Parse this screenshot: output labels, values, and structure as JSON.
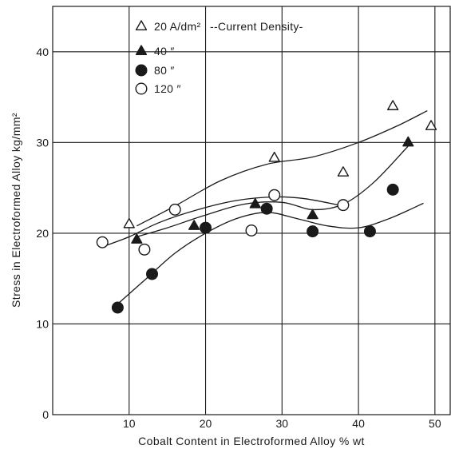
{
  "chart_data": {
    "type": "scatter",
    "xlabel": "Cobalt Content in Electroformed Alloy % wt",
    "ylabel": "Stress in Electroformed Alloy kg/mm²",
    "xlim": [
      0,
      52
    ],
    "ylim": [
      0,
      45
    ],
    "x_ticks": [
      "10",
      "20",
      "30",
      "40",
      "50"
    ],
    "y_ticks": [
      "0",
      "10",
      "20",
      "30",
      "40"
    ],
    "grid": true,
    "legend_position": "top-left",
    "legend_title": "--Current Density-",
    "series": [
      {
        "name": "20 A/dm²",
        "marker": "triangle-open",
        "points": [
          [
            10,
            21
          ],
          [
            29,
            28.3
          ],
          [
            38,
            26.7
          ],
          [
            44.5,
            34
          ],
          [
            49.5,
            31.8
          ]
        ],
        "curve": [
          [
            11,
            20.8
          ],
          [
            16,
            23
          ],
          [
            22,
            25.8
          ],
          [
            28,
            27.6
          ],
          [
            34,
            28.4
          ],
          [
            40,
            30
          ],
          [
            45,
            31.8
          ],
          [
            49,
            33.5
          ]
        ]
      },
      {
        "name": "40 ″",
        "marker": "triangle-filled",
        "points": [
          [
            11,
            19.3
          ],
          [
            18.5,
            20.8
          ],
          [
            26.5,
            23.2
          ],
          [
            34,
            22
          ],
          [
            46.5,
            30
          ]
        ],
        "curve": [
          [
            11,
            19.6
          ],
          [
            15,
            20.6
          ],
          [
            20,
            22
          ],
          [
            25,
            23.2
          ],
          [
            30,
            23.4
          ],
          [
            34,
            22.6
          ],
          [
            38,
            23.2
          ],
          [
            42,
            25.6
          ],
          [
            46.5,
            29.6
          ]
        ]
      },
      {
        "name": "80 ″",
        "marker": "circle-filled",
        "points": [
          [
            8.5,
            11.8
          ],
          [
            13,
            15.5
          ],
          [
            20,
            20.6
          ],
          [
            28,
            22.7
          ],
          [
            34,
            20.2
          ],
          [
            41.5,
            20.2
          ],
          [
            44.5,
            24.8
          ]
        ],
        "curve": [
          [
            8.5,
            12.2
          ],
          [
            12,
            14.8
          ],
          [
            16,
            17.8
          ],
          [
            20,
            20
          ],
          [
            24,
            21.6
          ],
          [
            28,
            22.3
          ],
          [
            32,
            21.6
          ],
          [
            36,
            20.8
          ],
          [
            40,
            20.6
          ],
          [
            44,
            21.6
          ],
          [
            48.5,
            23.3
          ]
        ]
      },
      {
        "name": "120 ″",
        "marker": "circle-open",
        "points": [
          [
            6.5,
            19
          ],
          [
            12,
            18.2
          ],
          [
            16,
            22.6
          ],
          [
            26,
            20.3
          ],
          [
            29,
            24.2
          ],
          [
            38,
            23.1
          ]
        ],
        "curve": [
          [
            6.5,
            18.5
          ],
          [
            10,
            19.6
          ],
          [
            14,
            21.2
          ],
          [
            19,
            22.6
          ],
          [
            24,
            23.6
          ],
          [
            29,
            24
          ],
          [
            33,
            23.8
          ],
          [
            38,
            23
          ]
        ]
      }
    ]
  }
}
